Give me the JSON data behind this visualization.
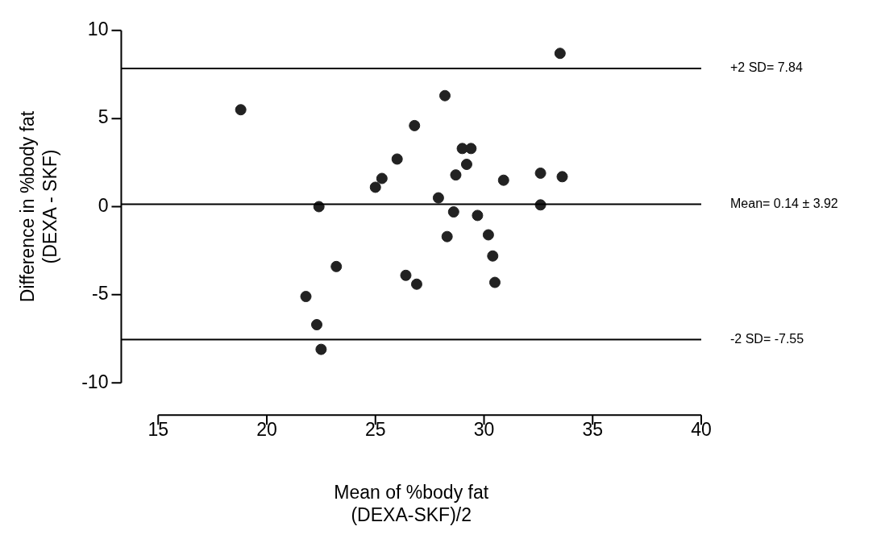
{
  "chart_data": {
    "type": "scatter",
    "xlabel": "Mean of %body fat\n(DEXA-SKF)/2",
    "ylabel": "Difference in %body fat\n(DEXA - SKF)",
    "series": [
      {
        "color": "#222222",
        "x": [
          18.8,
          21.8,
          22.3,
          22.4,
          22.5,
          23.2,
          25.0,
          25.3,
          26.0,
          26.4,
          26.8,
          26.9,
          27.9,
          28.2,
          28.3,
          28.6,
          28.7,
          29.0,
          29.2,
          29.4,
          29.7,
          30.2,
          30.4,
          30.5,
          30.9,
          32.6,
          32.6,
          33.5,
          33.6
        ],
        "values": [
          5.5,
          -5.1,
          -6.7,
          0.0,
          -8.1,
          -3.4,
          1.1,
          1.6,
          2.7,
          -3.9,
          4.6,
          -4.4,
          0.5,
          6.3,
          -1.7,
          -0.3,
          1.8,
          3.3,
          2.4,
          3.3,
          -0.5,
          -1.6,
          -2.8,
          -4.3,
          1.5,
          1.9,
          0.1,
          8.7,
          1.7
        ]
      }
    ],
    "xlim": [
      13.3,
      40
    ],
    "xticks": [
      15,
      20,
      25,
      30,
      35,
      40
    ],
    "ylim": [
      -10,
      10
    ],
    "yticks": [
      -10,
      -5,
      0,
      5,
      10
    ],
    "ref_lines": [
      {
        "axis": "y",
        "value": 7.84,
        "label": "+2 SD= 7.84",
        "color": "#000000"
      },
      {
        "axis": "y",
        "value": 0.14,
        "label": "Mean= 0.14 ± 3.92",
        "color": "#000000"
      },
      {
        "axis": "y",
        "value": -7.55,
        "label": "-2 SD= -7.55",
        "color": "#000000"
      }
    ],
    "marker": "circle",
    "grid": false,
    "legend": false
  }
}
